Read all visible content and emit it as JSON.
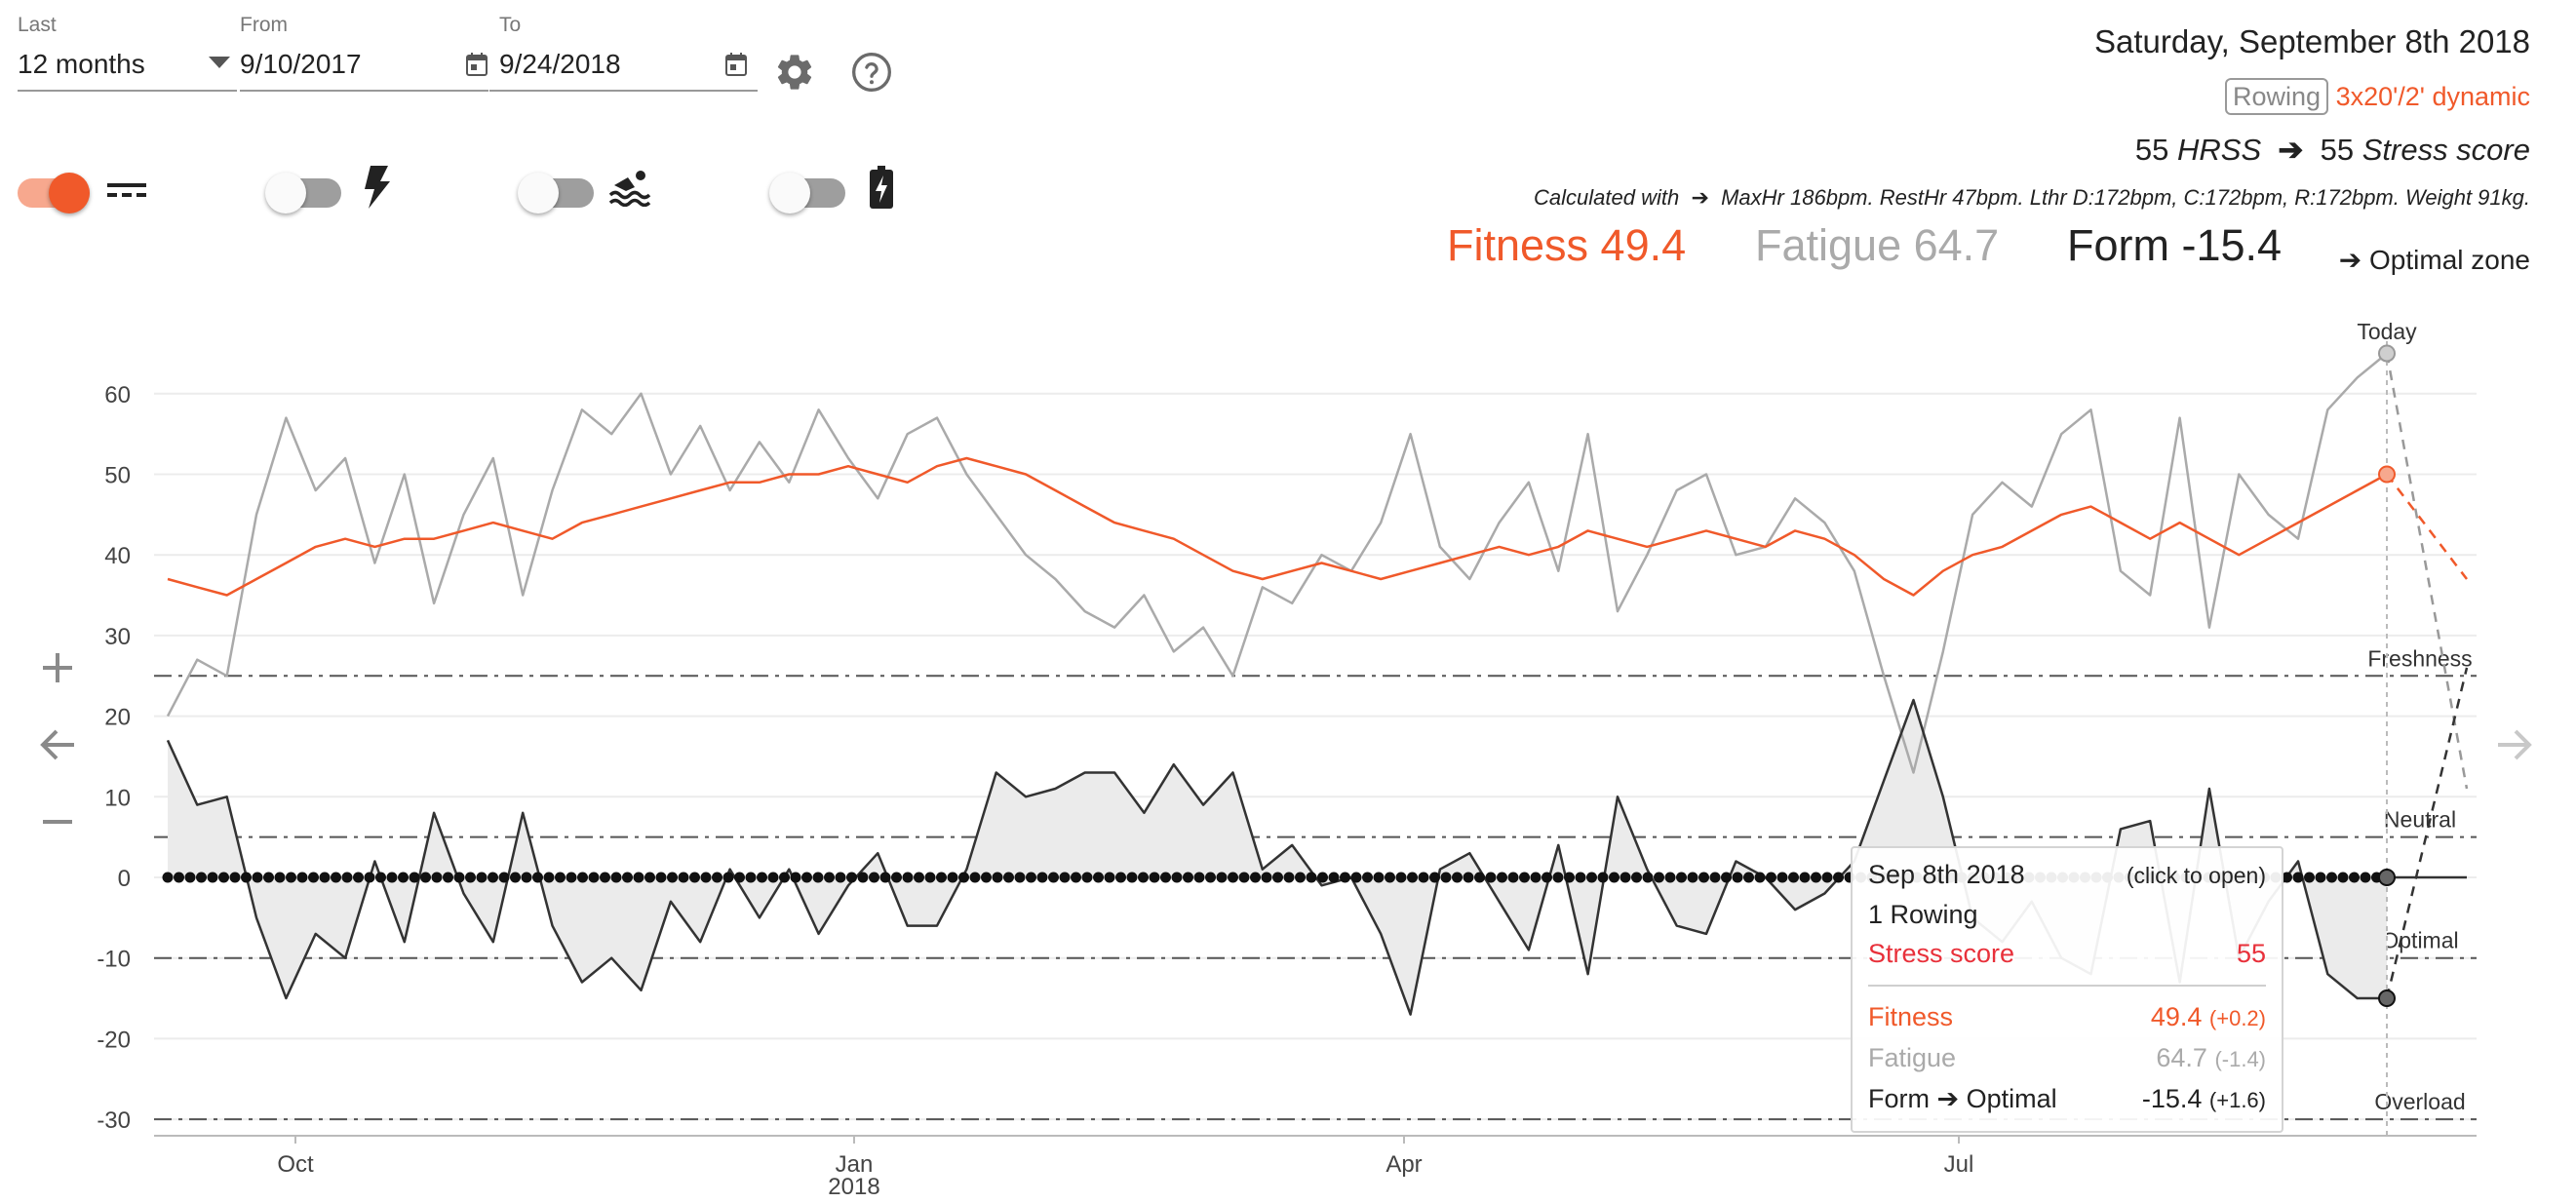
{
  "filters": {
    "last_label": "Last",
    "last_value": "12 months",
    "from_label": "From",
    "from_value": "9/10/2017",
    "to_label": "To",
    "to_value": "9/24/2018"
  },
  "icons": {
    "dropdown": "chevron-down-icon",
    "calendar": "calendar-icon",
    "settings": "gear-icon",
    "help": "help-circle-icon",
    "zoom_in": "plus-icon",
    "zoom_out": "minus-icon",
    "prev": "arrow-left-icon",
    "next": "arrow-right-icon"
  },
  "toggles": [
    {
      "name": "dashed-lines-toggle",
      "icon": "dashed-lines-icon",
      "on": true
    },
    {
      "name": "power-toggle",
      "icon": "lightning-icon",
      "on": false
    },
    {
      "name": "swim-toggle",
      "icon": "swim-icon",
      "on": false
    },
    {
      "name": "battery-toggle",
      "icon": "battery-icon",
      "on": false
    }
  ],
  "summary": {
    "date": "Saturday, September 8th 2018",
    "activity_badge": "Rowing",
    "activity_name": "3x20'/2' dynamic",
    "hrss_value": "55",
    "hrss_label": "HRSS",
    "arrow": "➔",
    "stress_value": "55",
    "stress_label": "Stress score",
    "calc_label": "Calculated with",
    "calc_detail": "MaxHr 186bpm. RestHr 47bpm. Lthr D:172bpm, C:172bpm, R:172bpm. Weight 91kg.",
    "fitness": "Fitness 49.4",
    "fatigue": "Fatigue 64.7",
    "form": "Form -15.4",
    "zone": "➔  Optimal zone"
  },
  "colors": {
    "fitness": "#f0592a",
    "fatigue": "#aaaaaa",
    "form": "#333333",
    "toggle_on": "#f0592a",
    "stress_text": "#e8303a"
  },
  "chart_data": {
    "type": "line",
    "ylim": [
      -32,
      66
    ],
    "yticks": [
      60,
      50,
      40,
      30,
      20,
      10,
      0,
      -10,
      -20,
      -30
    ],
    "xticks": [
      {
        "label": "Oct",
        "sub": ""
      },
      {
        "label": "Jan",
        "sub": "2018"
      },
      {
        "label": "Apr",
        "sub": ""
      },
      {
        "label": "Jul",
        "sub": ""
      }
    ],
    "zones": [
      {
        "label": "Freshness",
        "y": 25
      },
      {
        "label": "Neutral",
        "y": 5
      },
      {
        "label": "Optimal",
        "y": -10
      },
      {
        "label": "Overload",
        "y": -30
      }
    ],
    "today_label": "Today",
    "series": [
      {
        "name": "Fitness",
        "values": [
          37,
          36,
          35,
          37,
          39,
          41,
          42,
          41,
          42,
          42,
          43,
          44,
          43,
          42,
          44,
          45,
          46,
          47,
          48,
          49,
          49,
          50,
          50,
          51,
          50,
          49,
          51,
          52,
          51,
          50,
          48,
          46,
          44,
          43,
          42,
          40,
          38,
          37,
          38,
          39,
          38,
          37,
          38,
          39,
          40,
          41,
          40,
          41,
          43,
          42,
          41,
          42,
          43,
          42,
          41,
          43,
          42,
          40,
          37,
          35,
          38,
          40,
          41,
          43,
          45,
          46,
          44,
          42,
          44,
          42,
          40,
          42,
          44,
          46,
          48,
          50
        ]
      },
      {
        "name": "Fatigue",
        "values": [
          20,
          27,
          25,
          45,
          57,
          48,
          52,
          39,
          50,
          34,
          45,
          52,
          35,
          48,
          58,
          55,
          60,
          50,
          56,
          48,
          54,
          49,
          58,
          52,
          47,
          55,
          57,
          50,
          45,
          40,
          37,
          33,
          31,
          35,
          28,
          31,
          25,
          36,
          34,
          40,
          38,
          44,
          55,
          41,
          37,
          44,
          49,
          38,
          55,
          33,
          40,
          48,
          50,
          40,
          41,
          47,
          44,
          38,
          25,
          13,
          28,
          45,
          49,
          46,
          55,
          58,
          38,
          35,
          57,
          31,
          50,
          45,
          42,
          58,
          62,
          65
        ]
      },
      {
        "name": "Form",
        "values": [
          17,
          9,
          10,
          -5,
          -15,
          -7,
          -10,
          2,
          -8,
          8,
          -2,
          -8,
          8,
          -6,
          -13,
          -10,
          -14,
          -3,
          -8,
          1,
          -5,
          1,
          -7,
          -1,
          3,
          -6,
          -6,
          1,
          13,
          10,
          11,
          13,
          13,
          8,
          14,
          9,
          13,
          1,
          4,
          -1,
          0,
          -7,
          -17,
          1,
          3,
          -3,
          -9,
          4,
          -12,
          10,
          1,
          -6,
          -7,
          2,
          0,
          -4,
          -2,
          2,
          12,
          22,
          10,
          -5,
          -8,
          -3,
          -10,
          -12,
          6,
          7,
          -13,
          11,
          -10,
          -3,
          2,
          -12,
          -15,
          -15
        ]
      },
      {
        "name": "Fitness (projection)",
        "values": [
          50,
          37
        ]
      },
      {
        "name": "Fatigue (projection)",
        "values": [
          65,
          11
        ]
      },
      {
        "name": "Form (projection)",
        "values": [
          -15,
          26
        ]
      }
    ]
  },
  "tooltip": {
    "date": "Sep 8th 2018",
    "hint": "(click to open)",
    "activity": "1 Rowing",
    "stress_label": "Stress score",
    "stress_value": "55",
    "fitness_label": "Fitness",
    "fitness_value": "49.4",
    "fitness_delta": "(+0.2)",
    "fatigue_label": "Fatigue",
    "fatigue_value": "64.7",
    "fatigue_delta": "(-1.4)",
    "form_label": "Form ➔ Optimal",
    "form_value": "-15.4",
    "form_delta": "(+1.6)"
  }
}
